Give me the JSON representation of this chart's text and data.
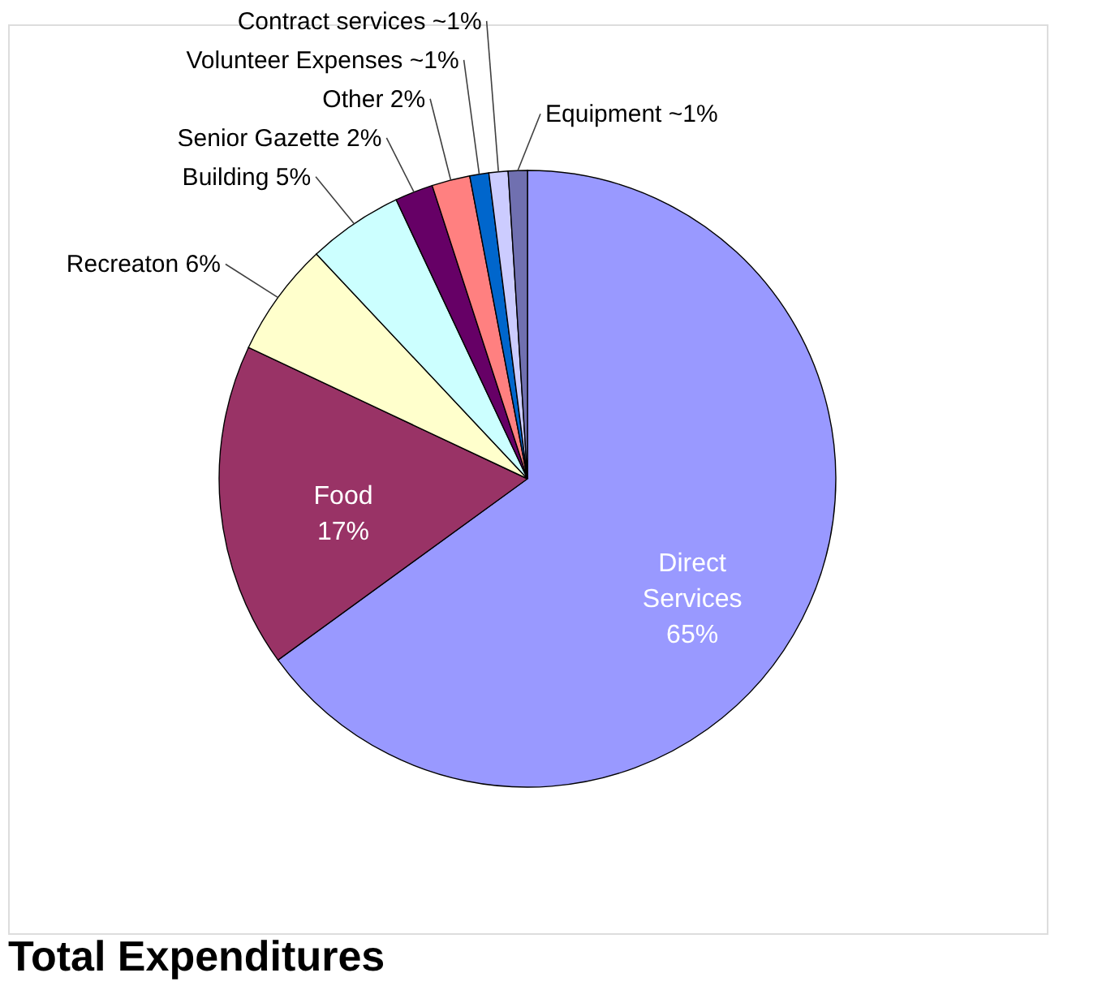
{
  "chart_data": {
    "type": "pie",
    "title": "Total Expenditures",
    "categories": [
      "Direct Services",
      "Food",
      "Recreaton",
      "Building",
      "Senior Gazette",
      "Other",
      "Volunteer Expenses",
      "Contract services",
      "Equipment"
    ],
    "values": [
      65,
      17,
      6,
      5,
      2,
      2,
      1,
      1,
      1
    ],
    "value_labels": [
      "65%",
      "17%",
      "6%",
      "5%",
      "2%",
      "2%",
      "~1%",
      "~1%",
      "~1%"
    ],
    "colors": [
      "#9999ff",
      "#993366",
      "#ffffcc",
      "#ccffff",
      "#660066",
      "#ff8080",
      "#0066cc",
      "#ccccff",
      "#7070b0"
    ],
    "legend": false
  }
}
